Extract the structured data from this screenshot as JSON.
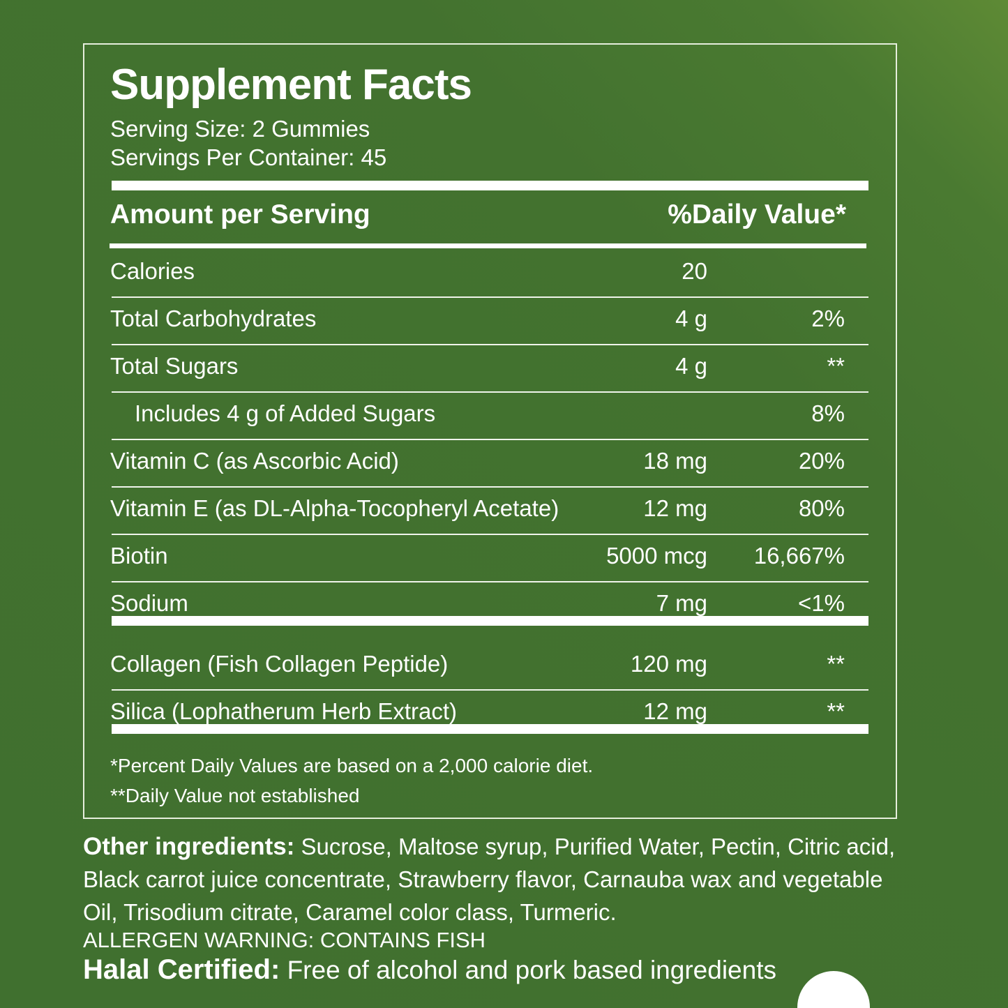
{
  "header": {
    "title": "Supplement Facts",
    "serving_size": "Serving Size: 2 Gummies",
    "servings_per_container": "Servings Per Container: 45"
  },
  "table": {
    "headers": [
      "Amount per Serving",
      "%Daily Value*"
    ],
    "groups": [
      {
        "rows": [
          {
            "name": "Calories",
            "amount": "20"
          },
          {
            "name": "Total Carbohydrates",
            "amount": "4 g",
            "dv": "2%"
          },
          {
            "name": "Total Sugars",
            "amount": "4 g",
            "dv": "**"
          },
          {
            "name": "Includes 4 g of Added Sugars",
            "dv": "8%",
            "indent": true
          },
          {
            "name": "Vitamin C (as Ascorbic Acid)",
            "amount": "18 mg",
            "dv": "20%"
          },
          {
            "name": "Vitamin E (as  DL-Alpha-Tocopheryl Acetate)",
            "amount": "12 mg",
            "dv": "80%"
          },
          {
            "name": "Biotin",
            "amount": "5000 mcg",
            "dv": "16,667%"
          },
          {
            "name": "Sodium",
            "amount": "7 mg",
            "dv": "<1%"
          }
        ]
      },
      {
        "rows": [
          {
            "name": "Collagen (Fish Collagen Peptide)",
            "amount": "120 mg",
            "dv": "**"
          },
          {
            "name": "Silica (Lophatherum Herb Extract)",
            "amount": "12 mg",
            "dv": "**"
          }
        ]
      }
    ]
  },
  "footnotes": [
    "*Percent Daily Values are based on a 2,000 calorie diet.",
    "**Daily Value not established"
  ],
  "ingredients": {
    "label": "Other ingredients:",
    "text": " Sucrose, Maltose syrup, Purified Water, Pectin, Citric acid, Black carrot juice concentrate, Strawberry flavor, Carnauba wax and vegetable Oil, Trisodium citrate, Caramel color class, Turmeric."
  },
  "allergen": "ALLERGEN WARNING: CONTAINS FISH",
  "halal": {
    "label": "Halal Certified:",
    "text": " Free of alcohol and pork based ingredients"
  }
}
